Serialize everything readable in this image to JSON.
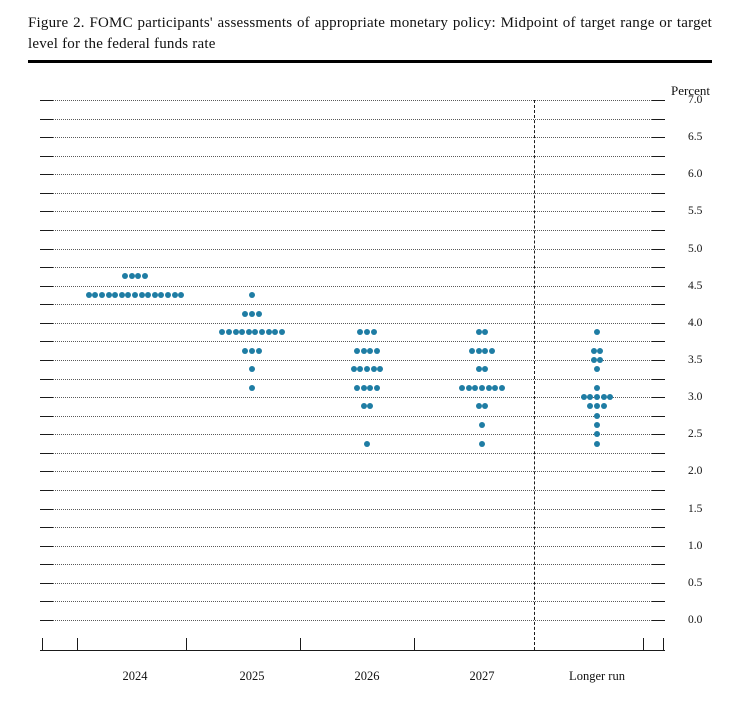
{
  "title": "Figure 2.  FOMC participants' assessments of appropriate monetary policy: Midpoint of target range or target level for the federal funds rate",
  "chart_data": {
    "type": "scatter",
    "subtype": "fomc-dot-plot",
    "title": "Figure 2. FOMC participants' assessments of appropriate monetary policy: Midpoint of target range or target level for the federal funds rate",
    "ylabel": "Percent",
    "xlabel": "",
    "ylim": [
      0.0,
      7.0
    ],
    "grid_step": 0.25,
    "label_step": 0.5,
    "grid": "dotted-horizontal",
    "legend": "none",
    "ytick_labels": [
      "7.0",
      "6.5",
      "6.0",
      "5.5",
      "5.0",
      "4.5",
      "4.0",
      "3.5",
      "3.0",
      "2.5",
      "2.0",
      "1.5",
      "1.0",
      "0.5",
      "0.0"
    ],
    "categories": [
      "2024",
      "2025",
      "2026",
      "2027",
      "Longer run"
    ],
    "dashed_separator_before": "Longer run",
    "dot_color": "#1f7da4",
    "participants_per_column": 19,
    "series": [
      {
        "category": "2024",
        "dots": [
          {
            "rate": 4.625,
            "count": 4
          },
          {
            "rate": 4.375,
            "count": 15
          }
        ]
      },
      {
        "category": "2025",
        "dots": [
          {
            "rate": 4.375,
            "count": 1
          },
          {
            "rate": 4.125,
            "count": 3
          },
          {
            "rate": 3.875,
            "count": 10
          },
          {
            "rate": 3.625,
            "count": 3
          },
          {
            "rate": 3.375,
            "count": 1
          },
          {
            "rate": 3.125,
            "count": 1
          }
        ]
      },
      {
        "category": "2026",
        "dots": [
          {
            "rate": 3.875,
            "count": 3
          },
          {
            "rate": 3.625,
            "count": 4
          },
          {
            "rate": 3.375,
            "count": 5
          },
          {
            "rate": 3.125,
            "count": 4
          },
          {
            "rate": 2.875,
            "count": 2
          },
          {
            "rate": 2.375,
            "count": 1
          }
        ]
      },
      {
        "category": "2027",
        "dots": [
          {
            "rate": 3.875,
            "count": 2
          },
          {
            "rate": 3.625,
            "count": 4
          },
          {
            "rate": 3.375,
            "count": 2
          },
          {
            "rate": 3.125,
            "count": 7
          },
          {
            "rate": 2.875,
            "count": 2
          },
          {
            "rate": 2.625,
            "count": 1
          },
          {
            "rate": 2.375,
            "count": 1
          }
        ]
      },
      {
        "category": "Longer run",
        "dots": [
          {
            "rate": 3.875,
            "count": 1
          },
          {
            "rate": 3.625,
            "count": 2
          },
          {
            "rate": 3.5,
            "count": 2
          },
          {
            "rate": 3.375,
            "count": 1
          },
          {
            "rate": 3.125,
            "count": 1
          },
          {
            "rate": 3.0,
            "count": 5
          },
          {
            "rate": 2.875,
            "count": 3
          },
          {
            "rate": 2.75,
            "count": 1
          },
          {
            "rate": 2.625,
            "count": 1
          },
          {
            "rate": 2.5,
            "count": 1
          },
          {
            "rate": 2.375,
            "count": 1
          }
        ]
      }
    ],
    "medians": {
      "2024": 4.375,
      "2025": 3.875,
      "2026": 3.375,
      "2027": 3.125,
      "Longer run": 3.0
    }
  }
}
